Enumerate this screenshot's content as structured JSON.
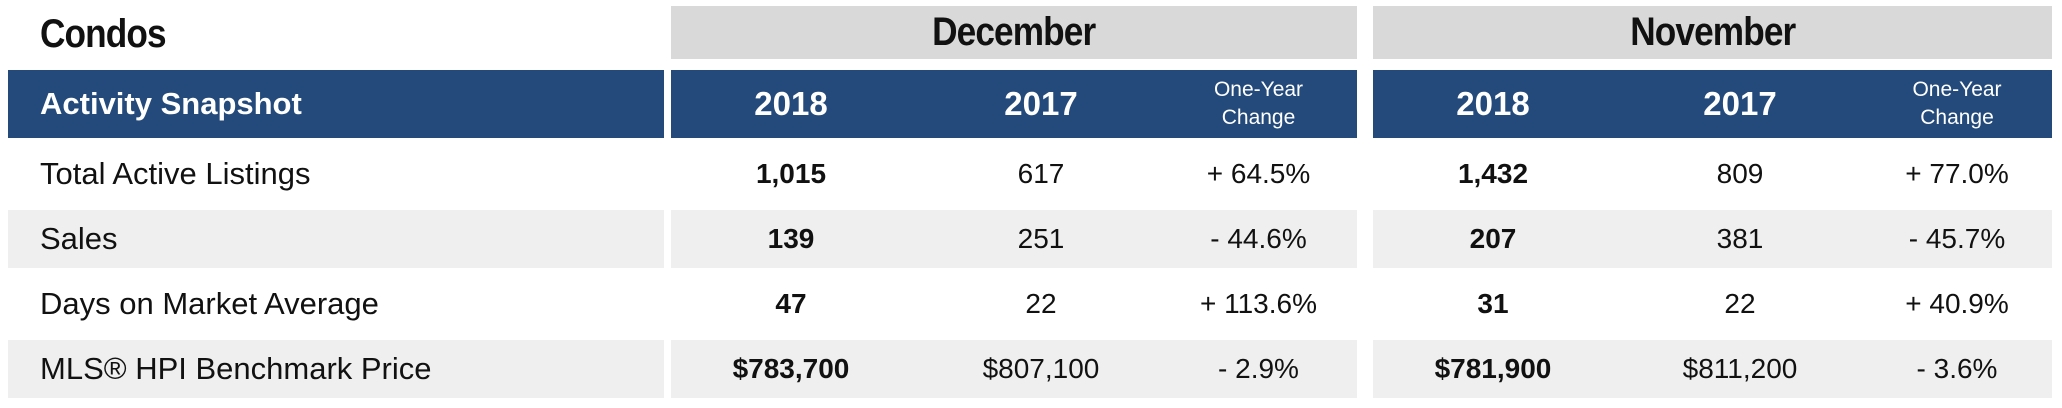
{
  "title": "Condos",
  "header": {
    "snapshot_label": "Activity Snapshot",
    "months": [
      {
        "name": "December",
        "year_current": "2018",
        "year_prior": "2017",
        "change_line1": "One-Year",
        "change_line2": "Change"
      },
      {
        "name": "November",
        "year_current": "2018",
        "year_prior": "2017",
        "change_line1": "One-Year",
        "change_line2": "Change"
      }
    ]
  },
  "rows": [
    {
      "label": "Total Active Listings",
      "dec": [
        "1,015",
        "617",
        "+ 64.5%"
      ],
      "nov": [
        "1,432",
        "809",
        "+ 77.0%"
      ]
    },
    {
      "label": "Sales",
      "dec": [
        "139",
        "251",
        "- 44.6%"
      ],
      "nov": [
        "207",
        "381",
        "- 45.7%"
      ]
    },
    {
      "label": "Days on Market Average",
      "dec": [
        "47",
        "22",
        "+ 113.6%"
      ],
      "nov": [
        "31",
        "22",
        "+ 40.9%"
      ]
    },
    {
      "label": "MLS® HPI Benchmark Price",
      "dec": [
        "$783,700",
        "$807,100",
        "- 2.9%"
      ],
      "nov": [
        "$781,900",
        "$811,200",
        "- 3.6%"
      ]
    }
  ],
  "colors": {
    "header_bar": "#234a7a",
    "month_header": "#d9d9d9",
    "stripe": "#efefef"
  }
}
